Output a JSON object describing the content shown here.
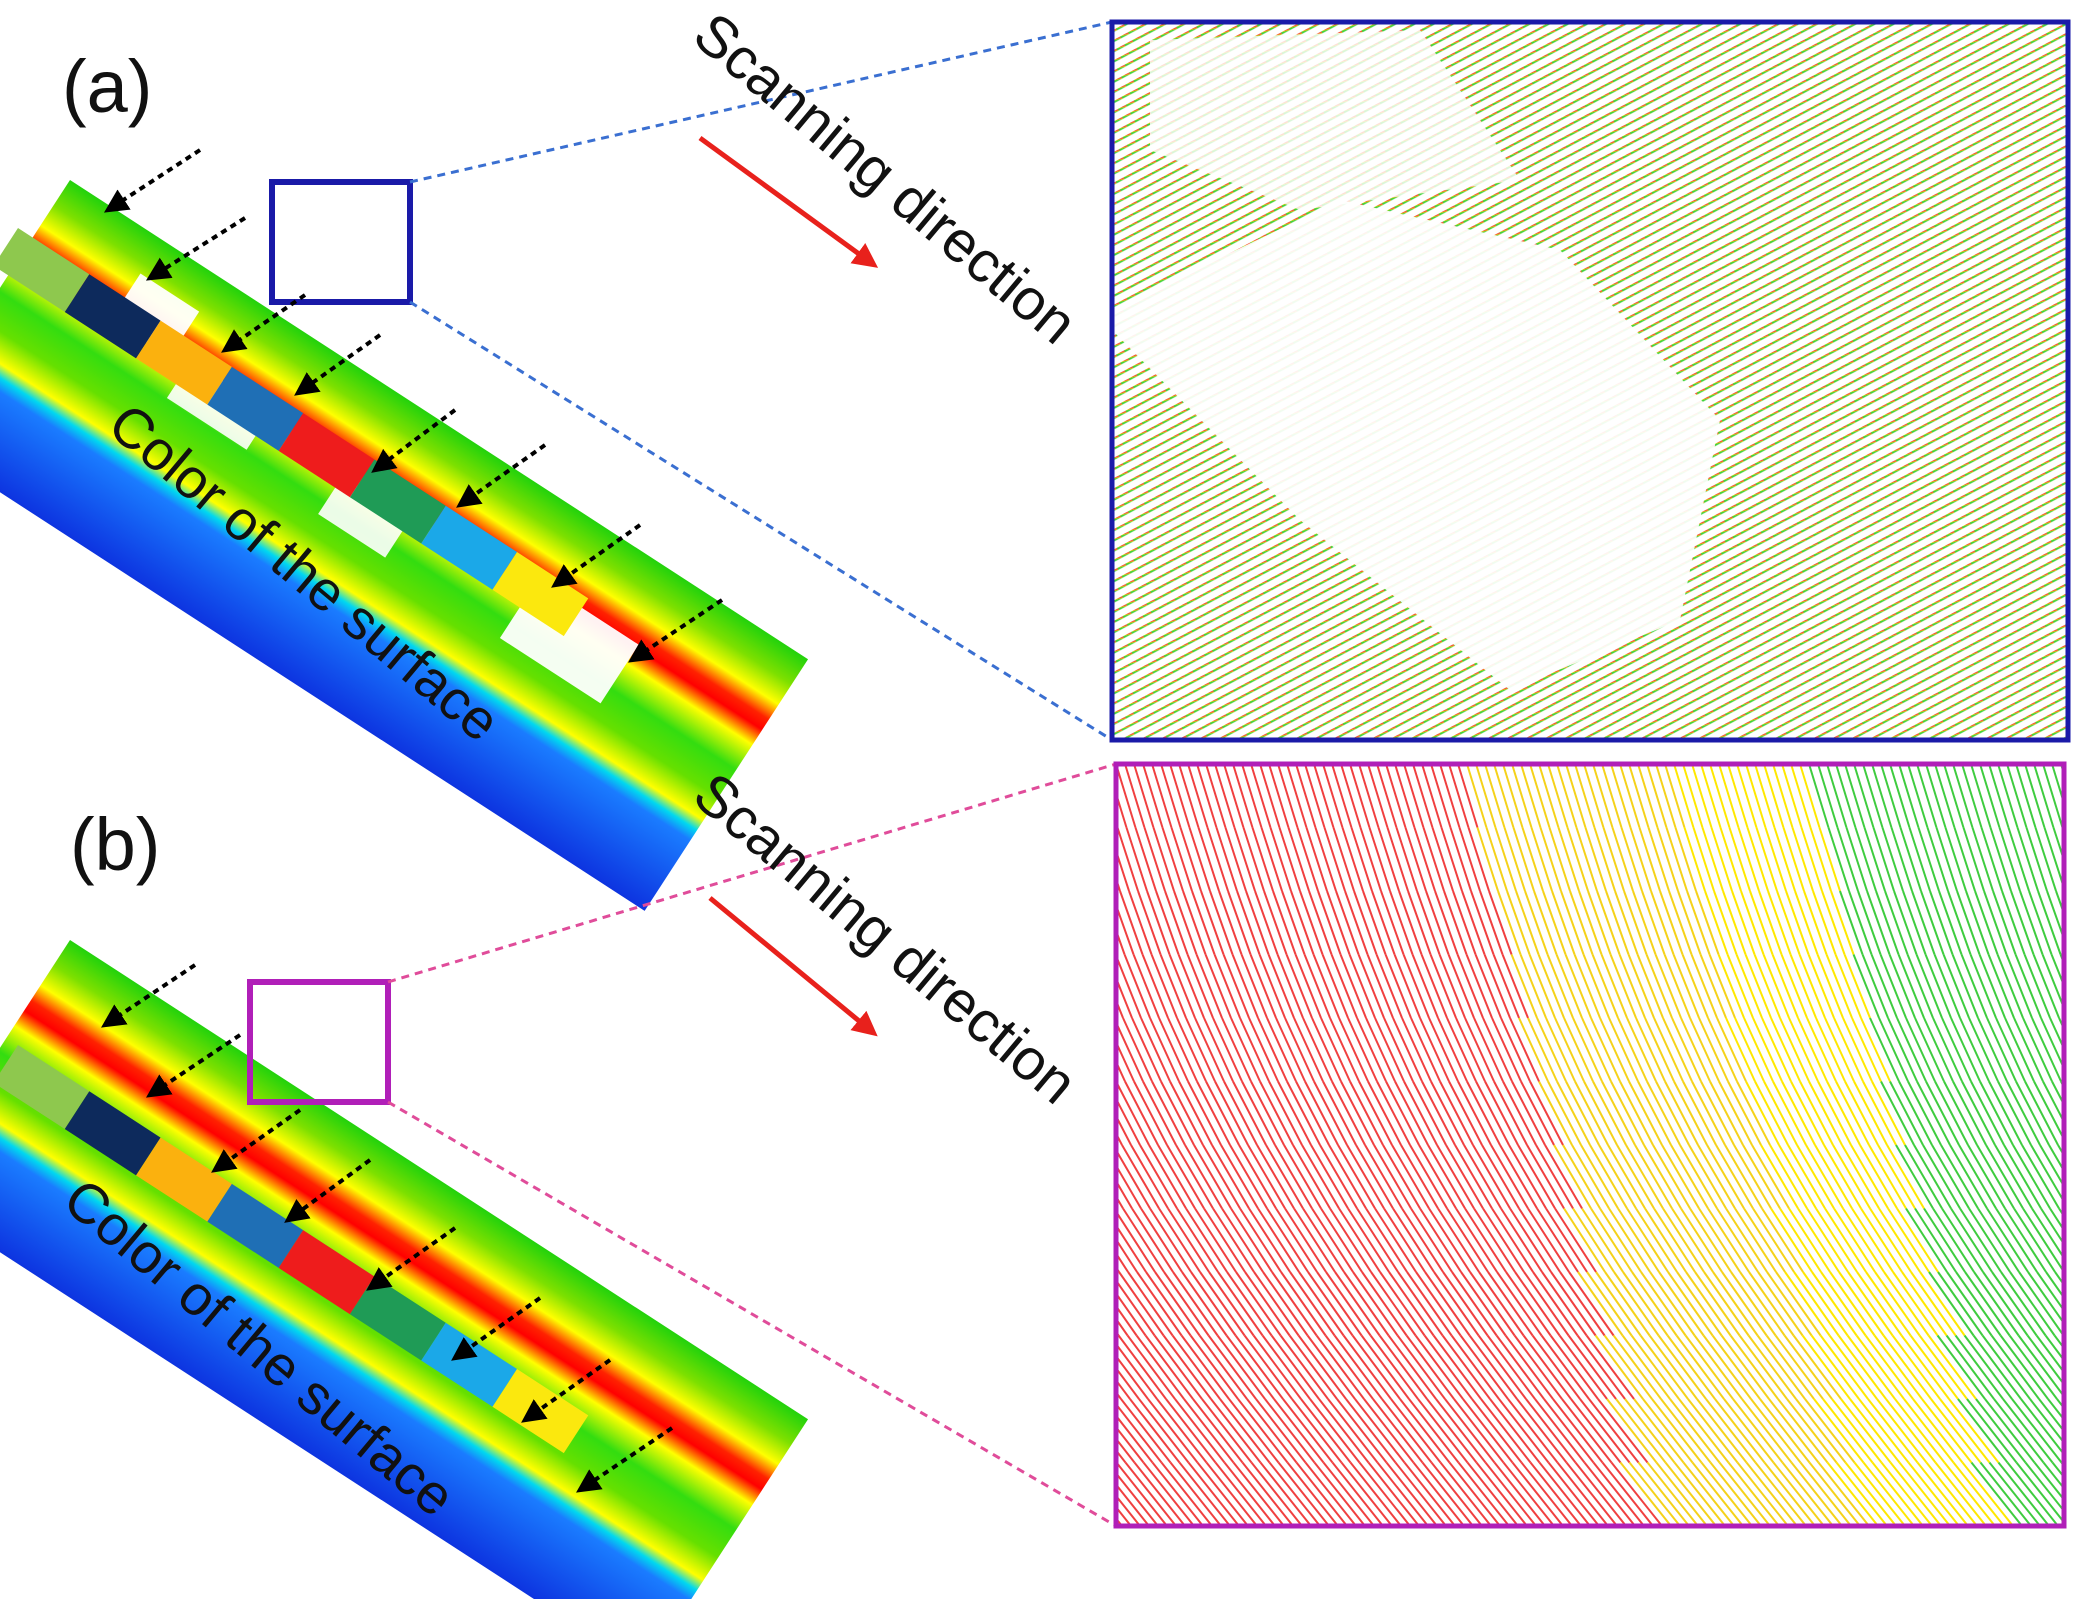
{
  "figure": {
    "panels": [
      {
        "id": "a",
        "label": "(a)",
        "scan_label": "Scanning direction",
        "color_label": "Color of the surface",
        "zoom_frame_color": "#1a1aa8",
        "note": "with hole (missing points)"
      },
      {
        "id": "b",
        "label": "(b)",
        "scan_label": "Scanning direction",
        "color_label": "Color of the surface",
        "zoom_frame_color": "#b01fb8"
      }
    ],
    "surface_color_swatches": [
      "#8ec84e",
      "#0d2a5c",
      "#fbb10e",
      "#1f6fb5",
      "#ee1c1c",
      "#1f9b56",
      "#1ba8e8",
      "#fbe80e"
    ],
    "arrow_color": "#e8211c",
    "colormap": [
      "#00cc00",
      "#ffff00",
      "#ff0000",
      "#ffff00",
      "#00cc00",
      "#ffff00",
      "#00c8ff",
      "#0044ff"
    ]
  }
}
